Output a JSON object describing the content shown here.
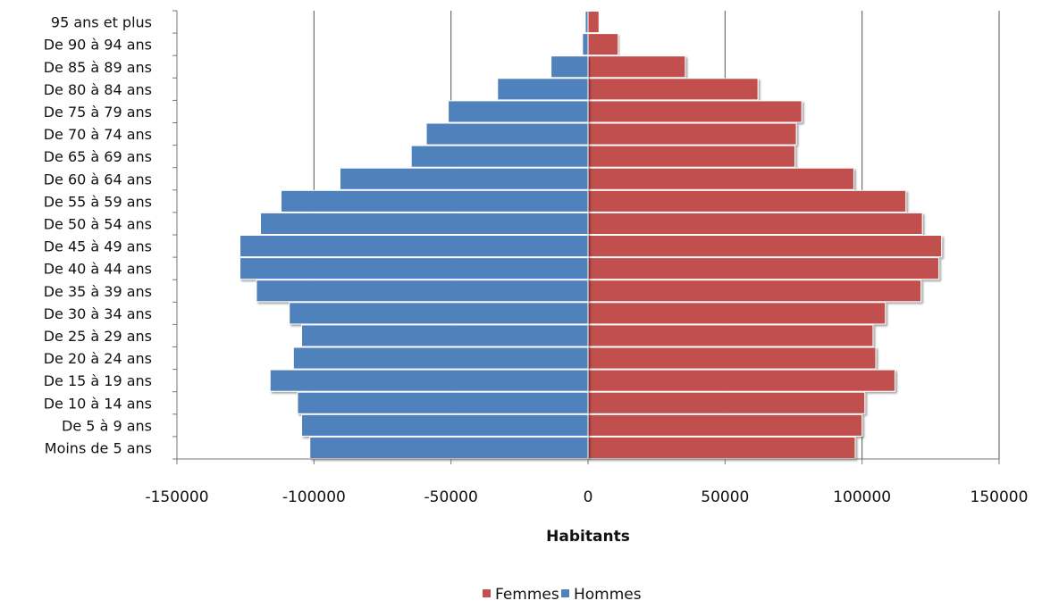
{
  "chart_data": {
    "type": "bar",
    "orientation": "horizontal",
    "title": "",
    "xlabel": "Habitants",
    "ylabel": "",
    "xlim": [
      -150000,
      150000
    ],
    "xticks": [
      "-150000",
      "-100000",
      "-50000",
      "0",
      "50000",
      "100000",
      "150000"
    ],
    "xtick_values": [
      -150000,
      -100000,
      -50000,
      0,
      50000,
      100000,
      150000
    ],
    "grid": "vertical",
    "legend_position": "bottom",
    "categories": [
      "95 ans et plus",
      "De 90 à 94 ans",
      "De 85 à 89 ans",
      "De 80 à 84 ans",
      "De 75 à 79 ans",
      "De 70 à 74 ans",
      "De 65 à 69 ans",
      "De 60 à 64 ans",
      "De 55 à 59 ans",
      "De 50 à 54 ans",
      "De 45 à 49 ans",
      "De 40 à 44 ans",
      "De 35 à 39 ans",
      "De 30 à 34 ans",
      "De 25 à 29 ans",
      "De 20 à 24 ans",
      "De 15 à 19 ans",
      "De 10 à 14 ans",
      "De 5 à 9 ans",
      "Moins de 5 ans"
    ],
    "series": [
      {
        "name": "Femmes",
        "color": "#c0504d",
        "values": [
          4000,
          11000,
          35500,
          62000,
          78000,
          76000,
          75500,
          97000,
          116000,
          122000,
          129000,
          128000,
          121500,
          108500,
          104000,
          105000,
          112000,
          101000,
          100000,
          97500
        ]
      },
      {
        "name": "Hommes",
        "color": "#4f81bd",
        "values": [
          -1000,
          -2000,
          -13500,
          -33000,
          -51000,
          -59000,
          -64500,
          -90500,
          -112000,
          -119500,
          -127000,
          -127000,
          -121000,
          -109000,
          -104500,
          -107500,
          -116000,
          -106000,
          -104500,
          -101500
        ]
      }
    ],
    "legend": [
      "Femmes",
      "Hommes"
    ]
  }
}
